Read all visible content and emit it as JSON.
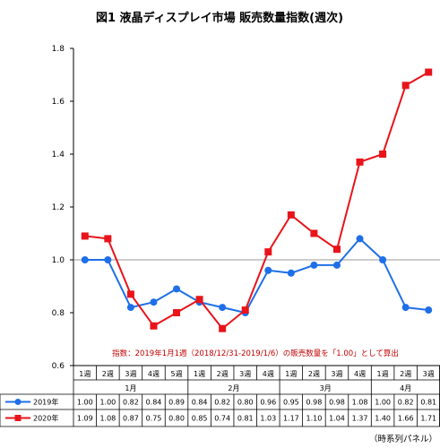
{
  "chart_data": {
    "type": "line",
    "title": "図1  液晶ディスプレイ市場 販売数量指数(週次)",
    "week_labels": [
      "1週",
      "2週",
      "3週",
      "4週",
      "5週",
      "1週",
      "2週",
      "3週",
      "4週",
      "1週",
      "2週",
      "3週",
      "4週",
      "1週",
      "2週",
      "3週"
    ],
    "month_labels": [
      {
        "label": "1月",
        "start": 0,
        "end": 4
      },
      {
        "label": "2月",
        "start": 5,
        "end": 8
      },
      {
        "label": "3月",
        "start": 9,
        "end": 12
      },
      {
        "label": "4月",
        "start": 13,
        "end": 15
      }
    ],
    "series": [
      {
        "name": "2019年",
        "color": "#1e6fe8",
        "marker": "circle",
        "values": [
          1.0,
          1.0,
          0.82,
          0.84,
          0.89,
          0.84,
          0.82,
          0.8,
          0.96,
          0.95,
          0.98,
          0.98,
          1.08,
          1.0,
          0.82,
          0.81
        ],
        "labels": [
          "1.00",
          "1.00",
          "0.82",
          "0.84",
          "0.89",
          "0.84",
          "0.82",
          "0.80",
          "0.96",
          "0.95",
          "0.98",
          "0.98",
          "1.08",
          "1.00",
          "0.82",
          "0.81"
        ]
      },
      {
        "name": "2020年",
        "color": "#e8141a",
        "marker": "square",
        "values": [
          1.09,
          1.08,
          0.87,
          0.75,
          0.8,
          0.85,
          0.74,
          0.81,
          1.03,
          1.17,
          1.1,
          1.04,
          1.37,
          1.4,
          1.66,
          1.71
        ],
        "labels": [
          "1.09",
          "1.08",
          "0.87",
          "0.75",
          "0.80",
          "0.85",
          "0.74",
          "0.81",
          "1.03",
          "1.17",
          "1.10",
          "1.04",
          "1.37",
          "1.40",
          "1.66",
          "1.71"
        ]
      }
    ],
    "ylim": [
      0.6,
      1.8
    ],
    "yticks": [
      "0.6",
      "0.8",
      "1.0",
      "1.2",
      "1.4",
      "1.6",
      "1.8"
    ],
    "reference_line": 1.0,
    "annotation": "指数：2019年1月1週（2018/12/31-2019/1/6）の販売数量を「1.00」として算出",
    "annotation_color": "#c00000",
    "footnote": "（時系列パネル）",
    "legend": "data-table"
  }
}
